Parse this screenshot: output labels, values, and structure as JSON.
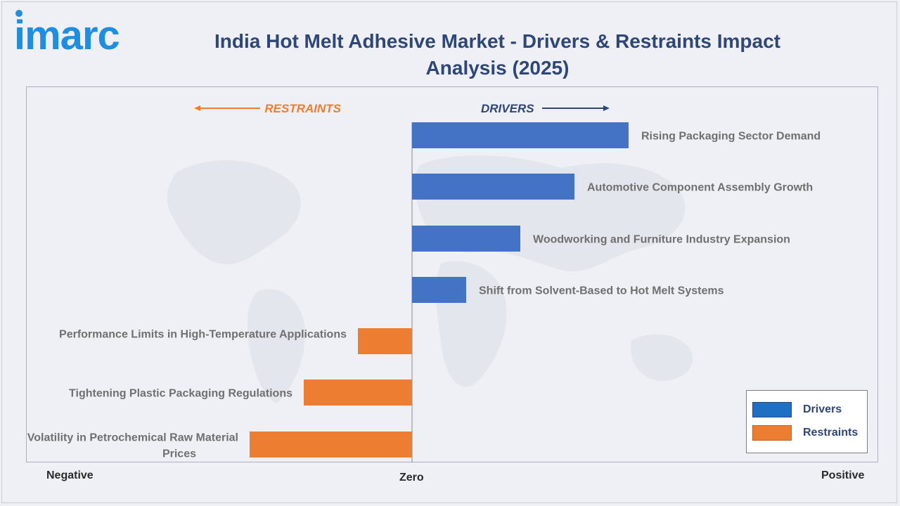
{
  "brand": {
    "logo_text": "imarc",
    "color": "#1f8ee0"
  },
  "title": "India Hot Melt Adhesive Market - Drivers & Restraints Impact Analysis (2025)",
  "labels": {
    "restraints_direction": "RESTRAINTS",
    "drivers_direction": "DRIVERS",
    "negative": "Negative",
    "zero": "Zero",
    "positive": "Positive"
  },
  "legend": [
    {
      "label": "Drivers",
      "color": "#4472c4"
    },
    {
      "label": "Restraints",
      "color": "#ed7d31"
    }
  ],
  "colors": {
    "drivers": "#4472c4",
    "restraints": "#ed7d31",
    "title": "#2e4678"
  },
  "chart_data": {
    "type": "bar",
    "orientation": "horizontal",
    "title": "India Hot Melt Adhesive Market - Drivers & Restraints Impact Analysis (2025)",
    "xlim": [
      -3,
      4
    ],
    "series": [
      {
        "name": "Drivers",
        "categories": [
          "Rising Packaging Sector Demand",
          "Automotive Component Assembly Growth",
          "Woodworking and Furniture Industry Expansion",
          "Shift from Solvent-Based to Hot Melt Systems"
        ],
        "values": [
          4,
          3,
          2,
          1
        ]
      },
      {
        "name": "Restraints",
        "categories": [
          "Performance Limits in High-Temperature Applications",
          "Tightening Plastic Packaging Regulations",
          "Volatility in Petrochemical Raw Material Prices"
        ],
        "values": [
          -1,
          -2,
          -3
        ]
      }
    ],
    "legend_position": "bottom-right",
    "grid": false
  }
}
